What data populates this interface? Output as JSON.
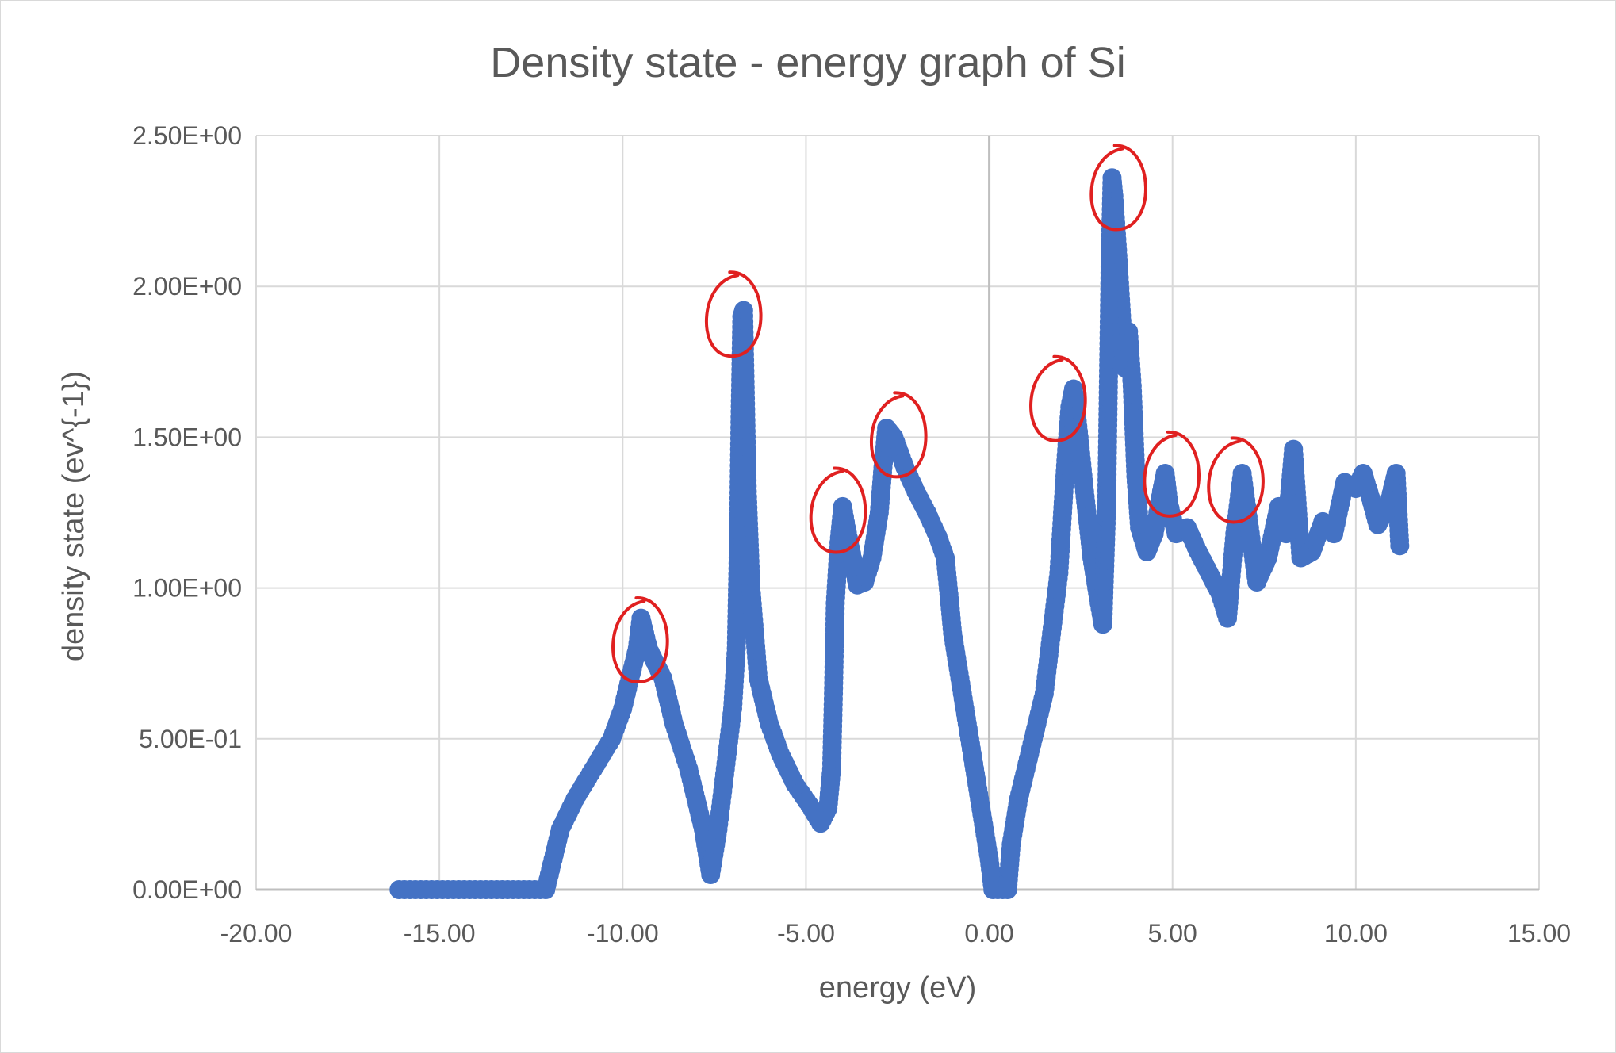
{
  "chart_data": {
    "type": "scatter",
    "title": "Density state - energy graph of Si",
    "xlabel": "energy (eV)",
    "ylabel": "density state (ev^{-1})",
    "xlim": [
      -20,
      15
    ],
    "ylim": [
      0,
      2.5
    ],
    "x_ticks": [
      "-20.00",
      "-15.00",
      "-10.00",
      "-5.00",
      "0.00",
      "5.00",
      "10.00",
      "15.00"
    ],
    "y_ticks": [
      "0.00E+00",
      "5.00E-01",
      "1.00E+00",
      "1.50E+00",
      "2.00E+00",
      "2.50E+00"
    ],
    "grid": true,
    "legend": "none",
    "marker_color": "#4472c4",
    "annotation_color": "#e02020",
    "series": [
      {
        "points": [
          [
            -16.1,
            0
          ],
          [
            -12.1,
            0
          ],
          [
            -11.9,
            0.1
          ],
          [
            -11.7,
            0.2
          ],
          [
            -11.3,
            0.3
          ],
          [
            -10.8,
            0.4
          ],
          [
            -10.3,
            0.5
          ],
          [
            -10.0,
            0.6
          ],
          [
            -9.8,
            0.7
          ],
          [
            -9.6,
            0.8
          ],
          [
            -9.5,
            0.9
          ],
          [
            -9.3,
            0.8
          ],
          [
            -8.9,
            0.7
          ],
          [
            -8.6,
            0.55
          ],
          [
            -8.2,
            0.4
          ],
          [
            -7.8,
            0.2
          ],
          [
            -7.6,
            0.05
          ],
          [
            -7.4,
            0.2
          ],
          [
            -7.2,
            0.4
          ],
          [
            -7.0,
            0.6
          ],
          [
            -6.9,
            0.8
          ],
          [
            -6.85,
            1.1
          ],
          [
            -6.8,
            1.55
          ],
          [
            -6.75,
            1.9
          ],
          [
            -6.7,
            1.92
          ],
          [
            -6.6,
            1.32
          ],
          [
            -6.5,
            1.0
          ],
          [
            -6.3,
            0.7
          ],
          [
            -6.0,
            0.55
          ],
          [
            -5.7,
            0.45
          ],
          [
            -5.3,
            0.35
          ],
          [
            -4.9,
            0.28
          ],
          [
            -4.6,
            0.22
          ],
          [
            -4.4,
            0.27
          ],
          [
            -4.3,
            0.4
          ],
          [
            -4.25,
            0.65
          ],
          [
            -4.2,
            0.95
          ],
          [
            -4.1,
            1.15
          ],
          [
            -4.0,
            1.27
          ],
          [
            -3.9,
            1.2
          ],
          [
            -3.7,
            1.08
          ],
          [
            -3.6,
            1.01
          ],
          [
            -3.4,
            1.02
          ],
          [
            -3.2,
            1.1
          ],
          [
            -3.0,
            1.25
          ],
          [
            -2.9,
            1.4
          ],
          [
            -2.8,
            1.53
          ],
          [
            -2.6,
            1.5
          ],
          [
            -2.3,
            1.4
          ],
          [
            -2.0,
            1.32
          ],
          [
            -1.7,
            1.25
          ],
          [
            -1.4,
            1.17
          ],
          [
            -1.2,
            1.1
          ],
          [
            -1.1,
            0.98
          ],
          [
            -1.0,
            0.85
          ],
          [
            -0.8,
            0.7
          ],
          [
            -0.6,
            0.55
          ],
          [
            -0.4,
            0.4
          ],
          [
            -0.2,
            0.25
          ],
          [
            0.0,
            0.1
          ],
          [
            0.1,
            0
          ],
          [
            0.5,
            0
          ],
          [
            0.6,
            0.15
          ],
          [
            0.8,
            0.3
          ],
          [
            1.0,
            0.4
          ],
          [
            1.3,
            0.55
          ],
          [
            1.5,
            0.65
          ],
          [
            1.7,
            0.85
          ],
          [
            1.9,
            1.05
          ],
          [
            2.0,
            1.25
          ],
          [
            2.1,
            1.44
          ],
          [
            2.2,
            1.6
          ],
          [
            2.3,
            1.66
          ],
          [
            2.45,
            1.5
          ],
          [
            2.6,
            1.32
          ],
          [
            2.8,
            1.1
          ],
          [
            3.0,
            0.95
          ],
          [
            3.1,
            0.88
          ],
          [
            3.2,
            1.25
          ],
          [
            3.3,
            2.1
          ],
          [
            3.35,
            2.36
          ],
          [
            3.4,
            2.3
          ],
          [
            3.5,
            2.12
          ],
          [
            3.6,
            1.92
          ],
          [
            3.7,
            1.73
          ],
          [
            3.8,
            1.85
          ],
          [
            3.9,
            1.67
          ],
          [
            4.0,
            1.37
          ],
          [
            4.1,
            1.2
          ],
          [
            4.3,
            1.12
          ],
          [
            4.5,
            1.18
          ],
          [
            4.7,
            1.32
          ],
          [
            4.8,
            1.38
          ],
          [
            4.9,
            1.28
          ],
          [
            5.1,
            1.18
          ],
          [
            5.4,
            1.2
          ],
          [
            5.7,
            1.12
          ],
          [
            6.0,
            1.05
          ],
          [
            6.3,
            0.98
          ],
          [
            6.5,
            0.9
          ],
          [
            6.7,
            1.18
          ],
          [
            6.9,
            1.38
          ],
          [
            7.1,
            1.2
          ],
          [
            7.3,
            1.02
          ],
          [
            7.6,
            1.1
          ],
          [
            7.9,
            1.27
          ],
          [
            8.1,
            1.18
          ],
          [
            8.3,
            1.46
          ],
          [
            8.5,
            1.1
          ],
          [
            8.8,
            1.12
          ],
          [
            9.1,
            1.22
          ],
          [
            9.4,
            1.18
          ],
          [
            9.7,
            1.35
          ],
          [
            10.0,
            1.33
          ],
          [
            10.2,
            1.38
          ],
          [
            10.4,
            1.3
          ],
          [
            10.6,
            1.21
          ],
          [
            10.9,
            1.28
          ],
          [
            11.1,
            1.38
          ],
          [
            11.2,
            1.14
          ]
        ]
      }
    ],
    "circled_points": [
      [
        -9.5,
        0.82
      ],
      [
        -6.95,
        1.9
      ],
      [
        -4.1,
        1.25
      ],
      [
        -2.45,
        1.5
      ],
      [
        1.9,
        1.62
      ],
      [
        3.55,
        2.32
      ],
      [
        5.0,
        1.37
      ],
      [
        6.75,
        1.35
      ]
    ]
  }
}
